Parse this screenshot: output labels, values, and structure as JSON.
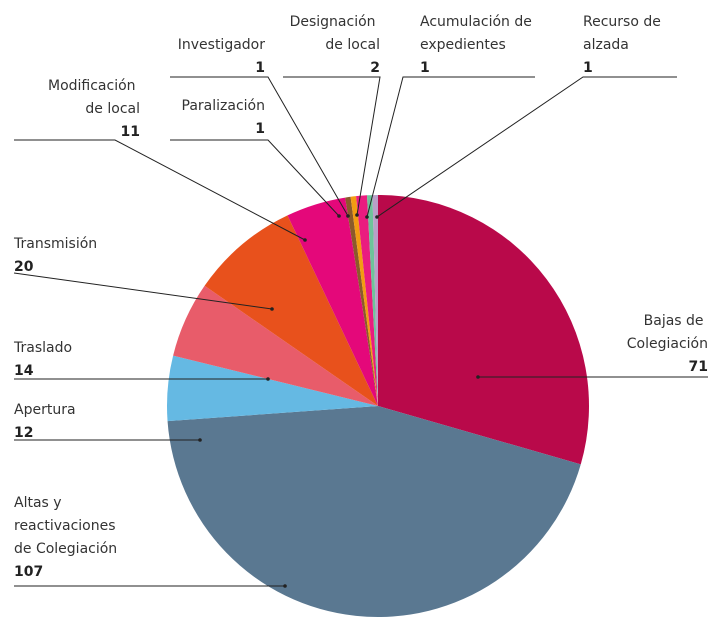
{
  "chart_data": {
    "type": "pie",
    "categories": [
      "Bajas de Colegiación",
      "Altas y reactivaciones de Colegiación",
      "Apertura",
      "Traslado",
      "Transmisión",
      "Modificación de local",
      "Paralización",
      "Investigador",
      "Designación de local",
      "Acumulación de expedientes",
      "Recurso de alzada"
    ],
    "values": [
      71,
      107,
      12,
      14,
      20,
      11,
      1,
      1,
      2,
      1,
      1
    ],
    "colors": [
      "#b9094a",
      "#5a7891",
      "#65b9e3",
      "#e85c6a",
      "#e8511c",
      "#e4087a",
      "#8b5a2b",
      "#f39c12",
      "#ea1c7f",
      "#6ec39a",
      "#b9a0c8"
    ]
  }
}
